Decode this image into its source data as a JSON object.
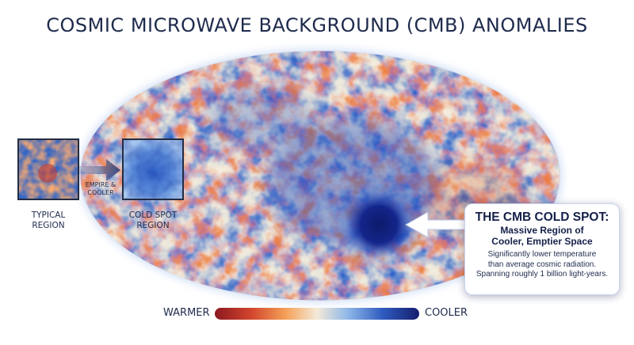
{
  "title": "COSMIC MICROWAVE BACKGROUND (CMB) ANOMALIES",
  "insets": {
    "typical_label_line1": "TYPICAL",
    "typical_label_line2": "REGION",
    "coldspot_label_line1": "COLD SPOT",
    "coldspot_label_line2": "REGION",
    "arrow_text_line1": "EMPIRE &",
    "arrow_text_line2": "COOLER"
  },
  "callout": {
    "heading": "THE CMB COLD SPOT:",
    "subheading_line1": "Massive Region of",
    "subheading_line2": "Cooler, Emptier Space",
    "body_line1": "Significantly lower temperature",
    "body_line2": "than average cosmic radiation.",
    "body_line3": "Spanning roughly 1 billion light-years."
  },
  "legend": {
    "warm_label": "WARMER",
    "cool_label": "COOLER"
  },
  "colors": {
    "title": "#1f2b4d",
    "warm": "#9c1c1c",
    "orange": "#f08a3c",
    "neutral": "#f4ead8",
    "lightblue": "#8fb8e8",
    "blue": "#2f63c8",
    "deepblue": "#151d6e",
    "border": "#222c44"
  },
  "icons": {
    "arrow_inset": "right-arrow-icon",
    "arrow_callout": "left-arrow-icon"
  }
}
